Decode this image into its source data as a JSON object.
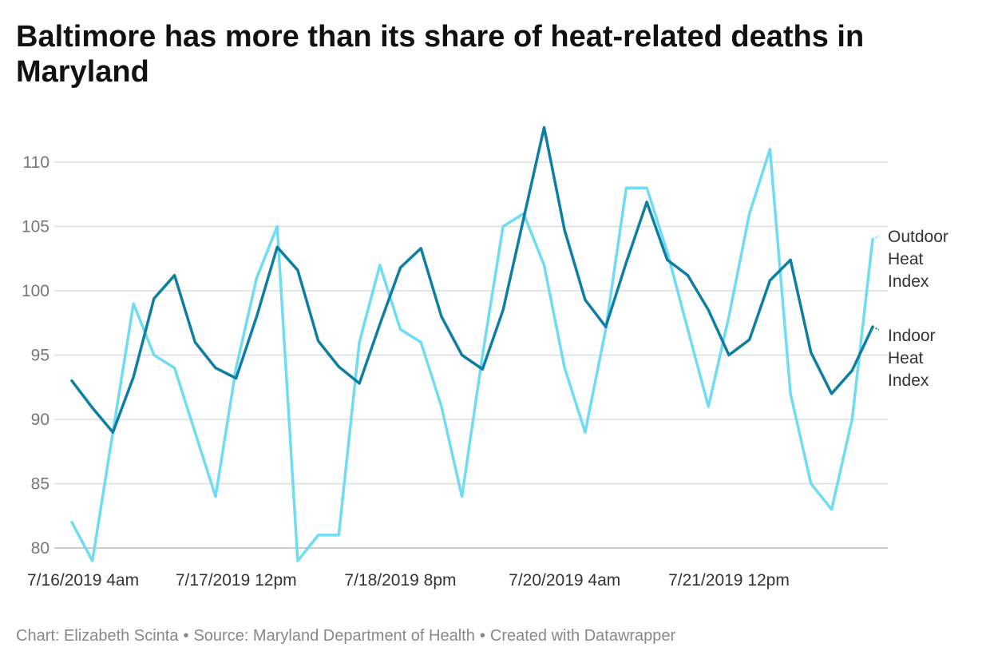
{
  "chart_data": {
    "type": "line",
    "title": "Baltimore has more than its share of heat-related deaths in Maryland",
    "xlabel": "",
    "ylabel": "",
    "ylim": [
      79,
      113
    ],
    "yticks": [
      80,
      85,
      90,
      95,
      100,
      105,
      110
    ],
    "x_tick_labels": [
      {
        "index": 0,
        "label": "7/16/2019 4am"
      },
      {
        "index": 8,
        "label": "7/17/2019 12pm"
      },
      {
        "index": 16,
        "label": "7/18/2019 8pm"
      },
      {
        "index": 24,
        "label": "7/20/2019 4am"
      },
      {
        "index": 32,
        "label": "7/21/2019 12pm"
      }
    ],
    "point_count": 40,
    "grid": true,
    "legend": "direct labels at right end of lines",
    "series": [
      {
        "name": "Outdoor Heat Index",
        "label_lines": [
          "Outdoor",
          "Heat",
          "Index"
        ],
        "color": "#6fdcf3",
        "values": [
          82,
          79,
          89,
          99,
          95,
          94,
          89,
          84,
          94,
          101,
          105,
          79,
          81,
          81,
          96,
          102,
          97,
          96,
          91,
          84,
          95,
          105,
          106,
          102,
          94,
          89,
          97,
          108,
          108,
          103,
          97,
          91,
          98,
          106,
          111,
          92,
          85,
          83,
          90,
          104
        ]
      },
      {
        "name": "Indoor Heat Index",
        "label_lines": [
          "Indoor",
          "Heat",
          "Index"
        ],
        "color": "#0e7ea3",
        "values": [
          93,
          90.9,
          89,
          93.3,
          99.4,
          101.2,
          96,
          94,
          93.2,
          98,
          103.4,
          101.6,
          96.1,
          94.1,
          92.8,
          97.4,
          101.8,
          103.3,
          98,
          95,
          93.9,
          98.5,
          105.6,
          112.7,
          104.7,
          99.3,
          97.2,
          102.2,
          106.9,
          102.4,
          101.2,
          98.5,
          95,
          96.2,
          100.8,
          102.4,
          95.2,
          92,
          93.8,
          97.2
        ]
      }
    ]
  },
  "footer": {
    "credit": "Chart: Elizabeth Scinta",
    "separator": "•",
    "source": "Source: Maryland Department of Health",
    "tool": "Created with Datawrapper"
  }
}
